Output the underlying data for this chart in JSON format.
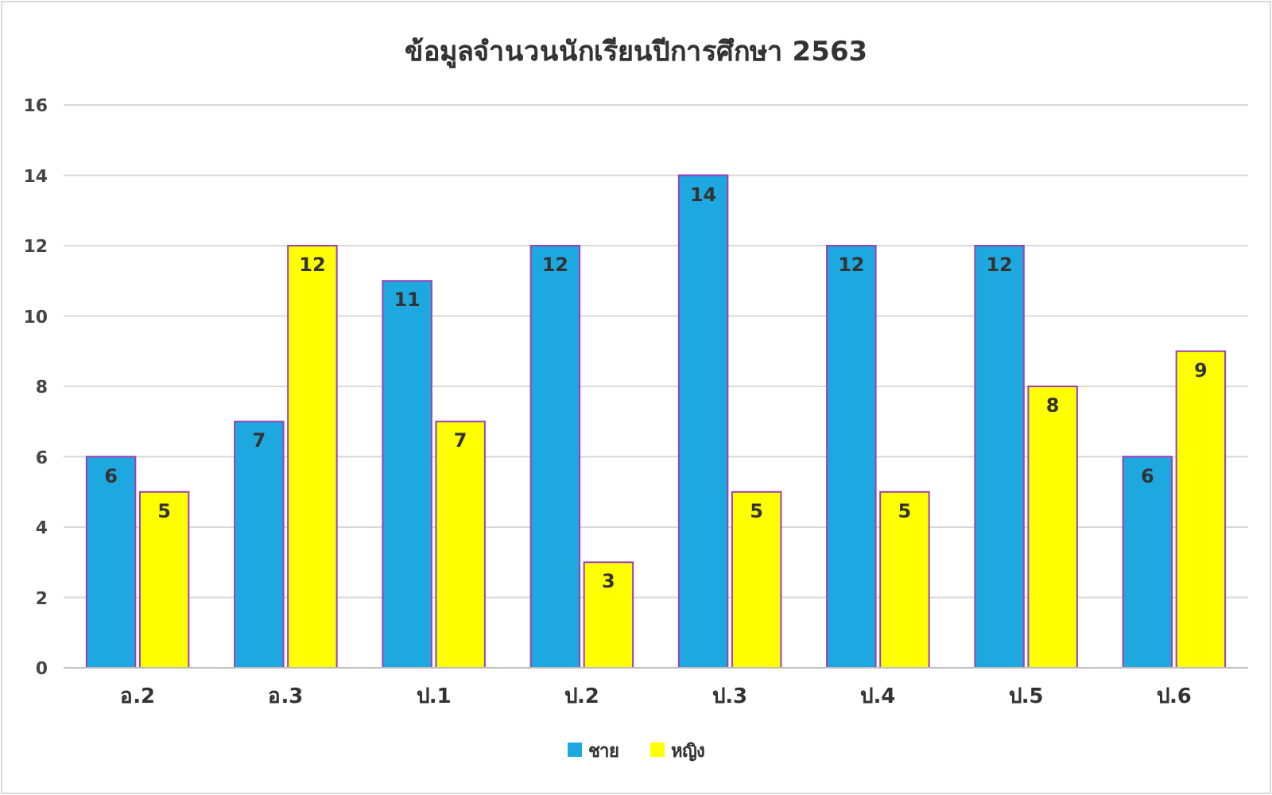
{
  "chart_data": {
    "type": "bar",
    "title": "ข้อมูลจำนวนนักเรียนปีการศึกษา  2563",
    "categories": [
      "อ.2",
      "อ.3",
      "ป.1",
      "ป.2",
      "ป.3",
      "ป.4",
      "ป.5",
      "ป.6"
    ],
    "series": [
      {
        "name": "ชาย",
        "color": "#1ea8e0",
        "values": [
          6,
          7,
          11,
          12,
          14,
          12,
          12,
          6
        ]
      },
      {
        "name": "หญิง",
        "color": "#ffff00",
        "values": [
          5,
          12,
          7,
          3,
          5,
          5,
          8,
          9
        ]
      }
    ],
    "ylim": [
      0,
      16
    ],
    "yticks": [
      0,
      2,
      4,
      6,
      8,
      10,
      12,
      14,
      16
    ],
    "grid": "y",
    "legend": "bottom",
    "data_labels": true
  }
}
